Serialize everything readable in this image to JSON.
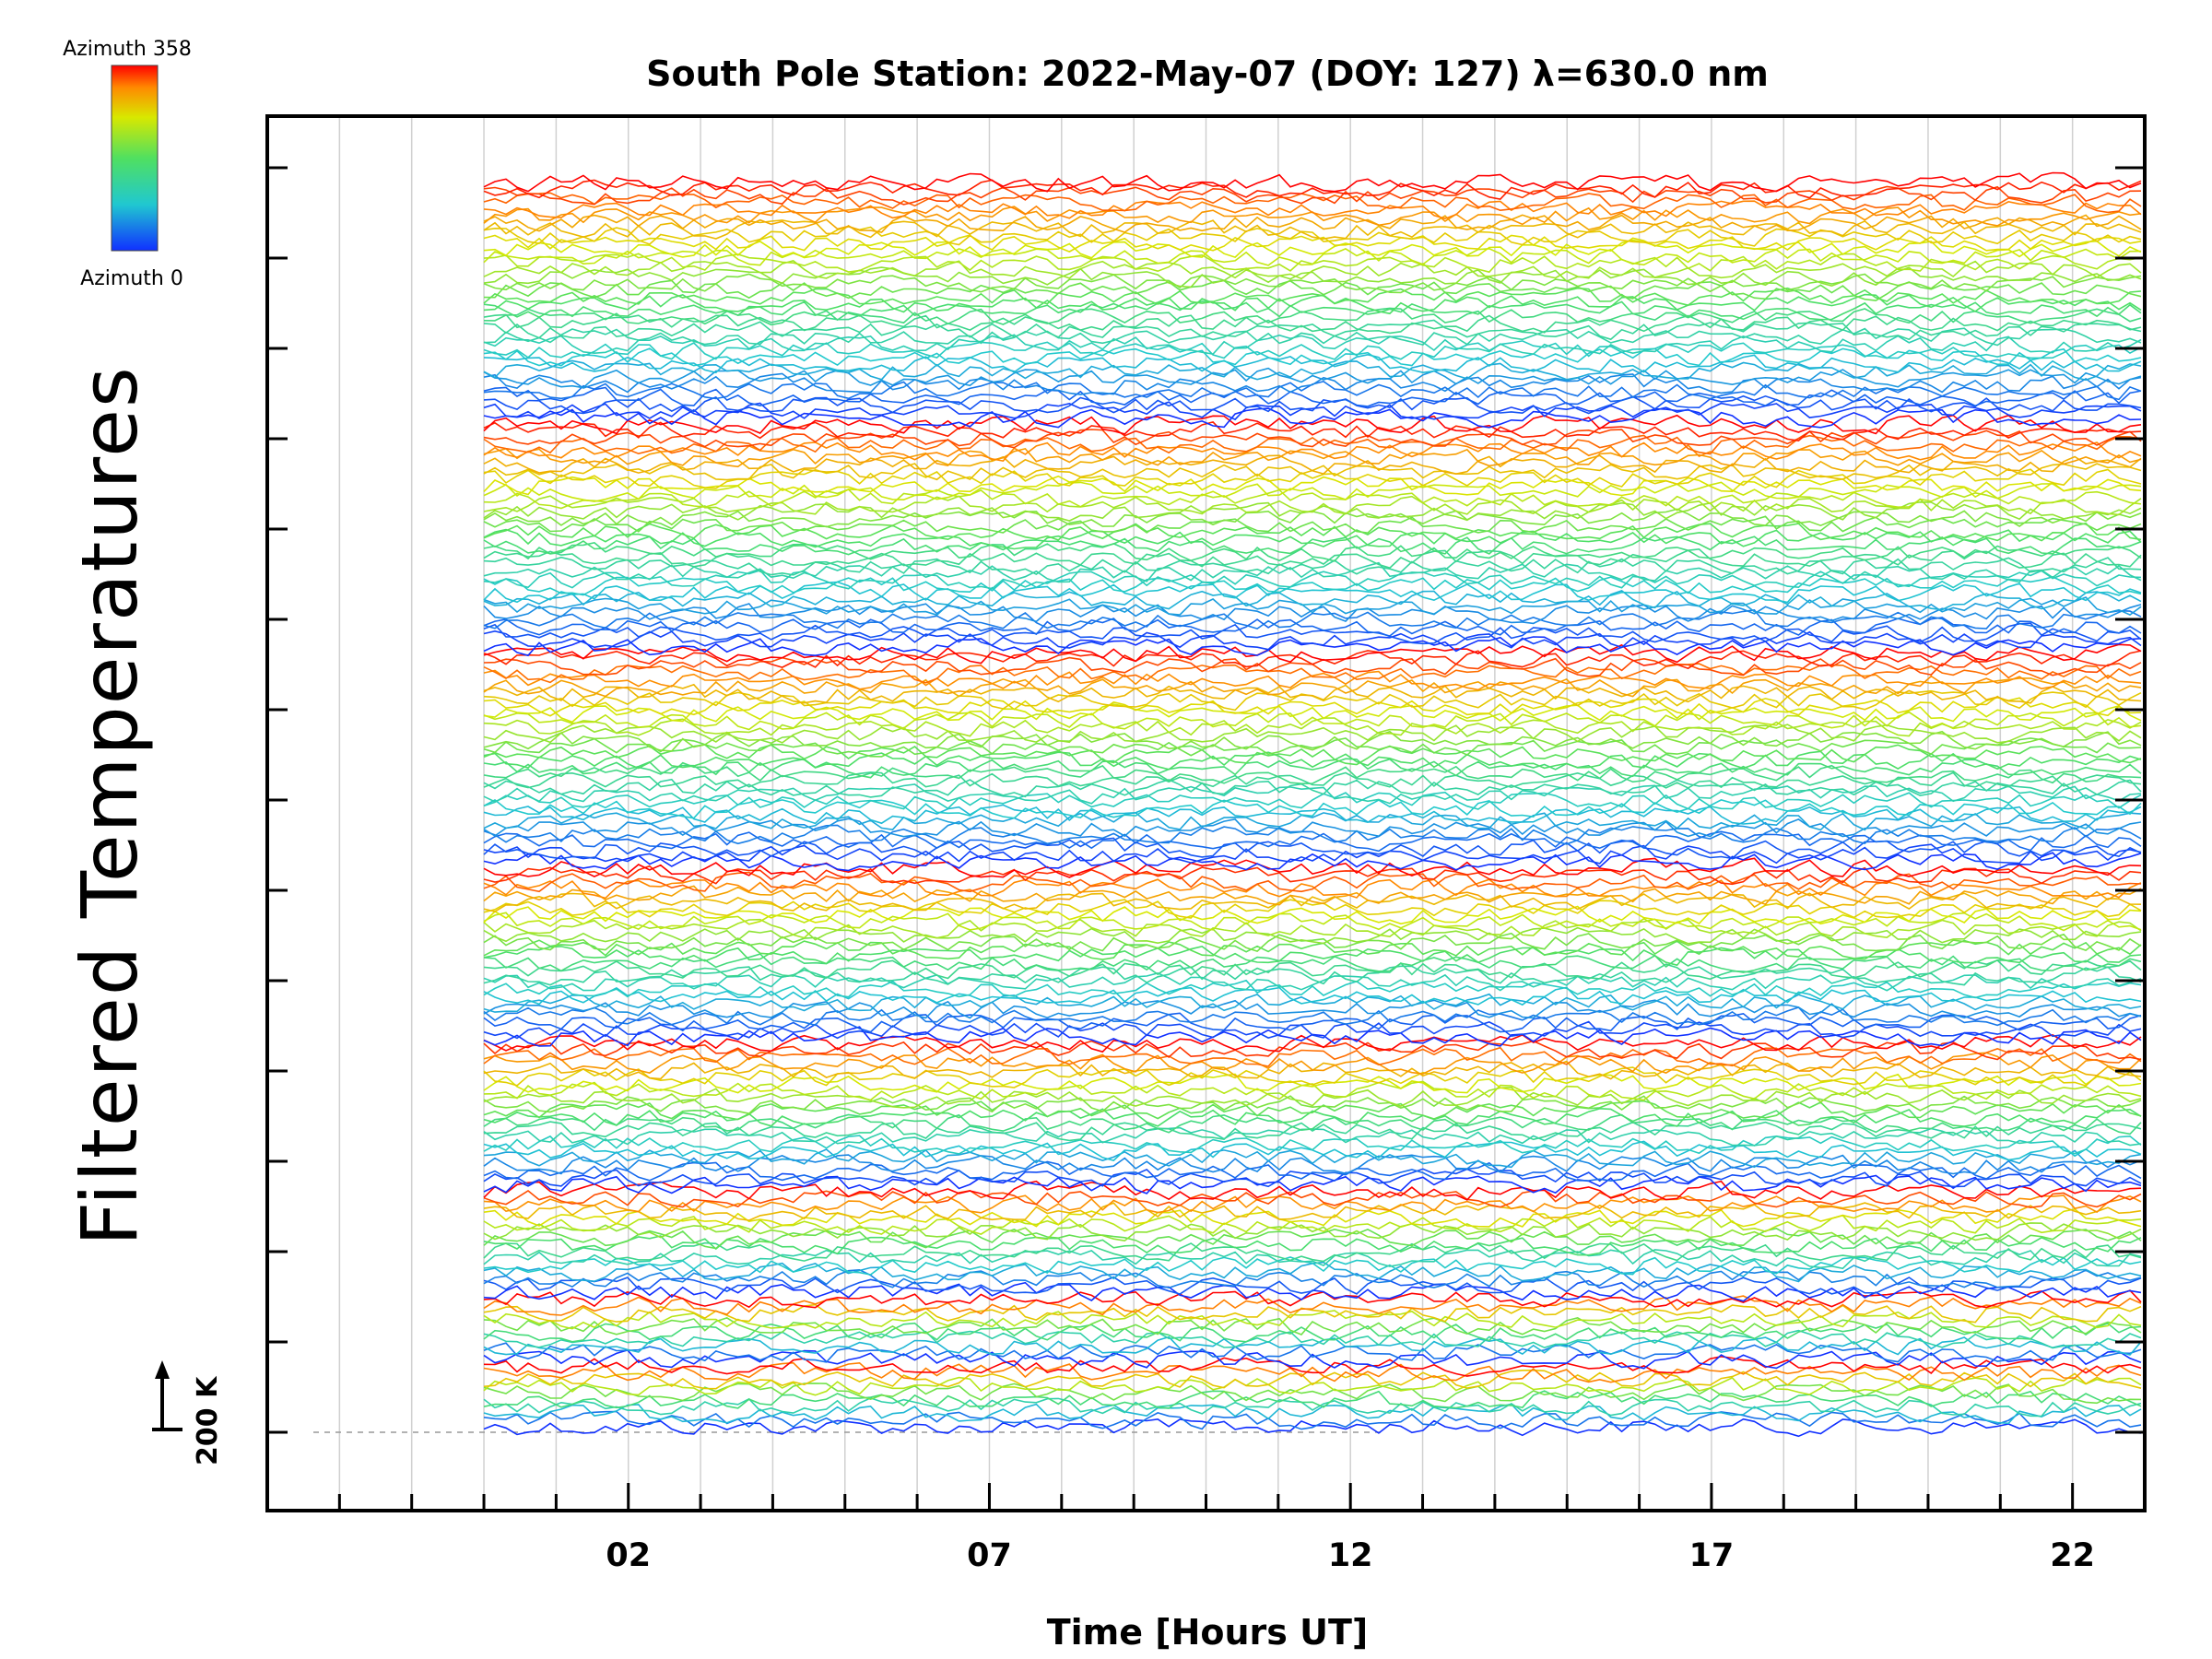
{
  "chart_data": {
    "type": "line",
    "title": "South Pole Station: 2022-May-07 (DOY: 127) λ=630.0 nm",
    "xlabel": "Time [Hours UT]",
    "ylabel": "Filtered Temperatures",
    "x_ticks": [
      "02",
      "07",
      "12",
      "17",
      "22"
    ],
    "x_tick_values": [
      2,
      7,
      12,
      17,
      22
    ],
    "xlim": [
      -3,
      23
    ],
    "data_start_hour": 0,
    "data_end_hour": 24,
    "grid": true,
    "scale_bar": {
      "label": "200 K",
      "value": 200
    },
    "colorbar": {
      "top_label": "Azimuth 358",
      "bottom_label": "Azimuth 0",
      "min": 0,
      "max": 358
    },
    "azimuth_groups": [
      {
        "azimuth_start": 0,
        "azimuth_end": 358,
        "traces": 10
      },
      {
        "azimuth_start": 0,
        "azimuth_end": 358,
        "traces": 10
      },
      {
        "azimuth_start": 0,
        "azimuth_end": 358,
        "traces": 16
      },
      {
        "azimuth_start": 0,
        "azimuth_end": 358,
        "traces": 22
      },
      {
        "azimuth_start": 0,
        "azimuth_end": 358,
        "traces": 26
      },
      {
        "azimuth_start": 0,
        "azimuth_end": 358,
        "traces": 32
      },
      {
        "azimuth_start": 0,
        "azimuth_end": 358,
        "traces": 34
      },
      {
        "azimuth_start": 0,
        "azimuth_end": 358,
        "traces": 36
      }
    ],
    "colors": {
      "azimuth_0": "#1f3fd9",
      "azimuth_90": "#22b8c8",
      "azimuth_180": "#8fe02a",
      "azimuth_270": "#f0b000",
      "azimuth_358": "#ff1a00"
    }
  }
}
